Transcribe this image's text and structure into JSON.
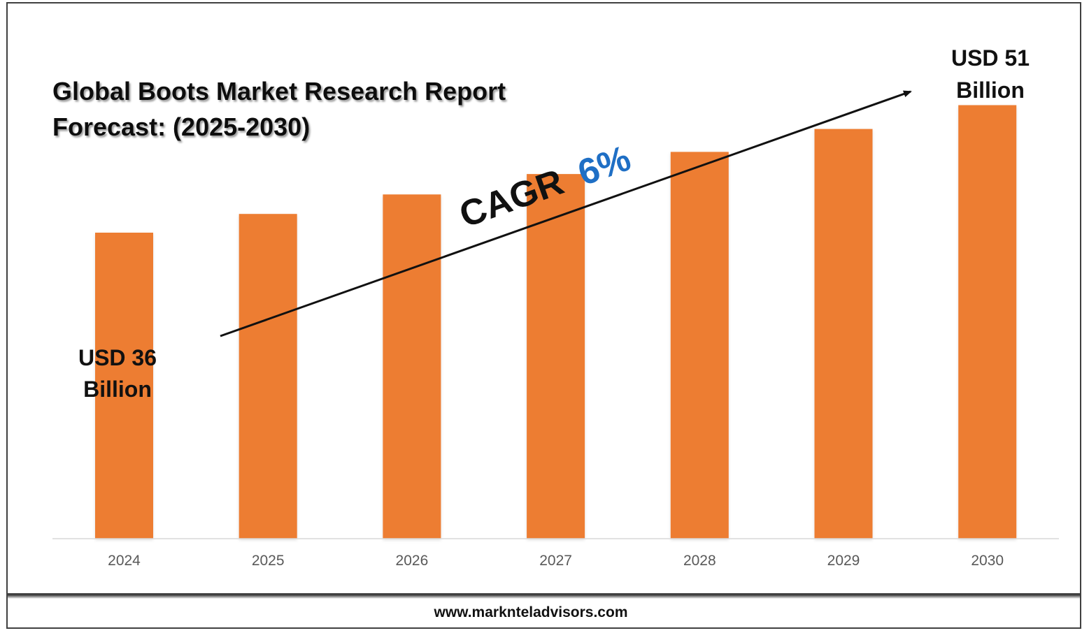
{
  "chart_data": {
    "type": "bar",
    "title": "Global Boots Market Research Report Forecast: (2025-2030)",
    "title_lines": [
      "Global Boots Market Research Report",
      "Forecast: (2025-2030)"
    ],
    "categories": [
      "2024",
      "2025",
      "2026",
      "2027",
      "2028",
      "2029",
      "2030"
    ],
    "values": [
      36,
      38.2,
      40.5,
      42.9,
      45.5,
      48.2,
      51
    ],
    "unit": "USD Billion",
    "color": "#ed7d31",
    "ylim": [
      0,
      54
    ],
    "grid": false,
    "legend": "none",
    "annotations": {
      "start_lines": [
        "USD 36",
        "Billion"
      ],
      "end_lines": [
        "USD 51",
        "Billion"
      ],
      "cagr_label": "CAGR",
      "cagr_value": "6%"
    }
  },
  "footer": {
    "url": "www.marknteladvisors.com"
  }
}
